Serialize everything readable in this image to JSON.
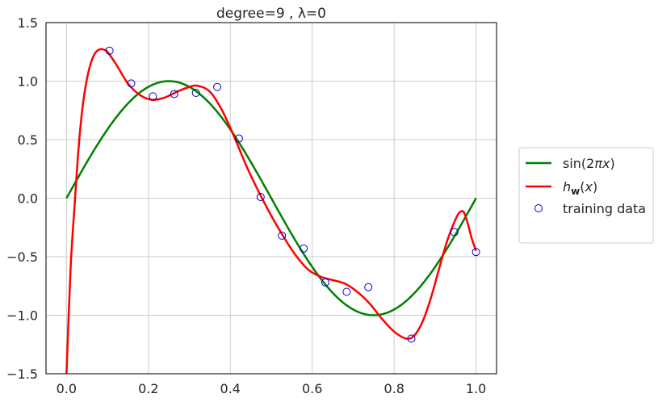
{
  "chart_data": {
    "type": "line",
    "title": "degree=9 , λ=0",
    "xlabel": "",
    "ylabel": "",
    "xlim": [
      -0.05,
      1.05
    ],
    "ylim": [
      -1.5,
      1.5
    ],
    "grid": true,
    "legend_position": "right",
    "x_ticks": [
      0.0,
      0.2,
      0.4,
      0.6,
      0.8,
      1.0
    ],
    "x_tick_labels": [
      "0.0",
      "0.2",
      "0.4",
      "0.6",
      "0.8",
      "1.0"
    ],
    "y_ticks": [
      -1.5,
      -1.0,
      -0.5,
      0.0,
      0.5,
      1.0,
      1.5
    ],
    "y_tick_labels": [
      "−1.5",
      "−1.0",
      "−0.5",
      "0.0",
      "0.5",
      "1.0",
      "1.5"
    ],
    "series": [
      {
        "name": "sin(2πx)",
        "kind": "line",
        "color": "#008000",
        "function": "sin(2*pi*x)",
        "x_range": [
          0.0,
          1.0
        ]
      },
      {
        "name": "h_w(x)",
        "kind": "line",
        "color": "#ff0000",
        "x": [
          0.0,
          0.01,
          0.02,
          0.03,
          0.04,
          0.05,
          0.06,
          0.07,
          0.08,
          0.09,
          0.1,
          0.12,
          0.15,
          0.18,
          0.21,
          0.24,
          0.27,
          0.3,
          0.32,
          0.35,
          0.38,
          0.41,
          0.44,
          0.47,
          0.5,
          0.53,
          0.56,
          0.59,
          0.62,
          0.65,
          0.68,
          0.71,
          0.74,
          0.77,
          0.8,
          0.83,
          0.85,
          0.87,
          0.89,
          0.91,
          0.93,
          0.95,
          0.96,
          0.97,
          0.98,
          0.99,
          1.0
        ],
        "y": [
          -1.5,
          -0.6,
          -0.05,
          0.45,
          0.8,
          1.02,
          1.16,
          1.24,
          1.27,
          1.27,
          1.25,
          1.15,
          0.98,
          0.88,
          0.84,
          0.86,
          0.91,
          0.95,
          0.96,
          0.91,
          0.75,
          0.52,
          0.27,
          0.05,
          -0.15,
          -0.33,
          -0.49,
          -0.61,
          -0.67,
          -0.7,
          -0.73,
          -0.8,
          -0.9,
          -1.03,
          -1.14,
          -1.2,
          -1.17,
          -1.05,
          -0.85,
          -0.6,
          -0.36,
          -0.18,
          -0.12,
          -0.12,
          -0.22,
          -0.35,
          -0.45
        ]
      },
      {
        "name": "training data",
        "kind": "scatter",
        "color": "#0000cc",
        "x": [
          0.105,
          0.158,
          0.211,
          0.263,
          0.316,
          0.368,
          0.421,
          0.474,
          0.526,
          0.579,
          0.632,
          0.684,
          0.737,
          0.842,
          0.947,
          1.0
        ],
        "y": [
          1.26,
          0.98,
          0.87,
          0.89,
          0.9,
          0.95,
          0.51,
          0.01,
          -0.32,
          -0.43,
          -0.72,
          -0.8,
          -0.76,
          -1.2,
          -0.29,
          -0.46
        ]
      }
    ]
  },
  "legend": {
    "items": [
      {
        "label": "sin(2πx)",
        "color": "#008000",
        "kind": "line"
      },
      {
        "label": "h_w(x)",
        "color": "#ff0000",
        "kind": "line"
      },
      {
        "label": "training data",
        "color": "#0000cc",
        "kind": "marker"
      }
    ]
  }
}
